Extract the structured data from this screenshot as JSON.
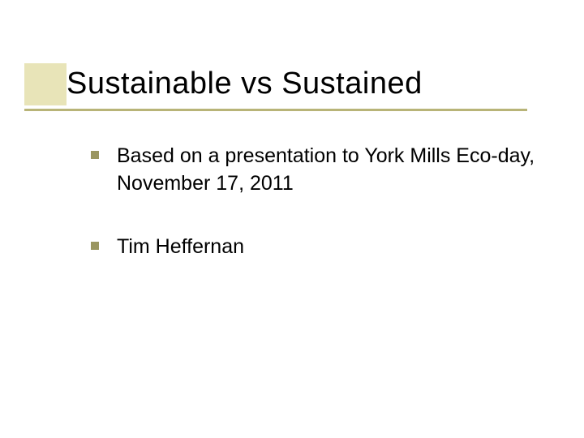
{
  "slide": {
    "title": "Sustainable vs Sustained",
    "bullets": [
      "Based on a presentation to York Mills Eco-day, November 17, 2011",
      "Tim Heffernan"
    ],
    "accent_box_color": "#e8e4b8",
    "underline_color": "#b8b478",
    "bullet_marker_color": "#9a9660",
    "title_fontsize": 38,
    "bullet_fontsize": 25,
    "background_color": "#ffffff",
    "text_color": "#000000",
    "font_family": "Verdana"
  }
}
